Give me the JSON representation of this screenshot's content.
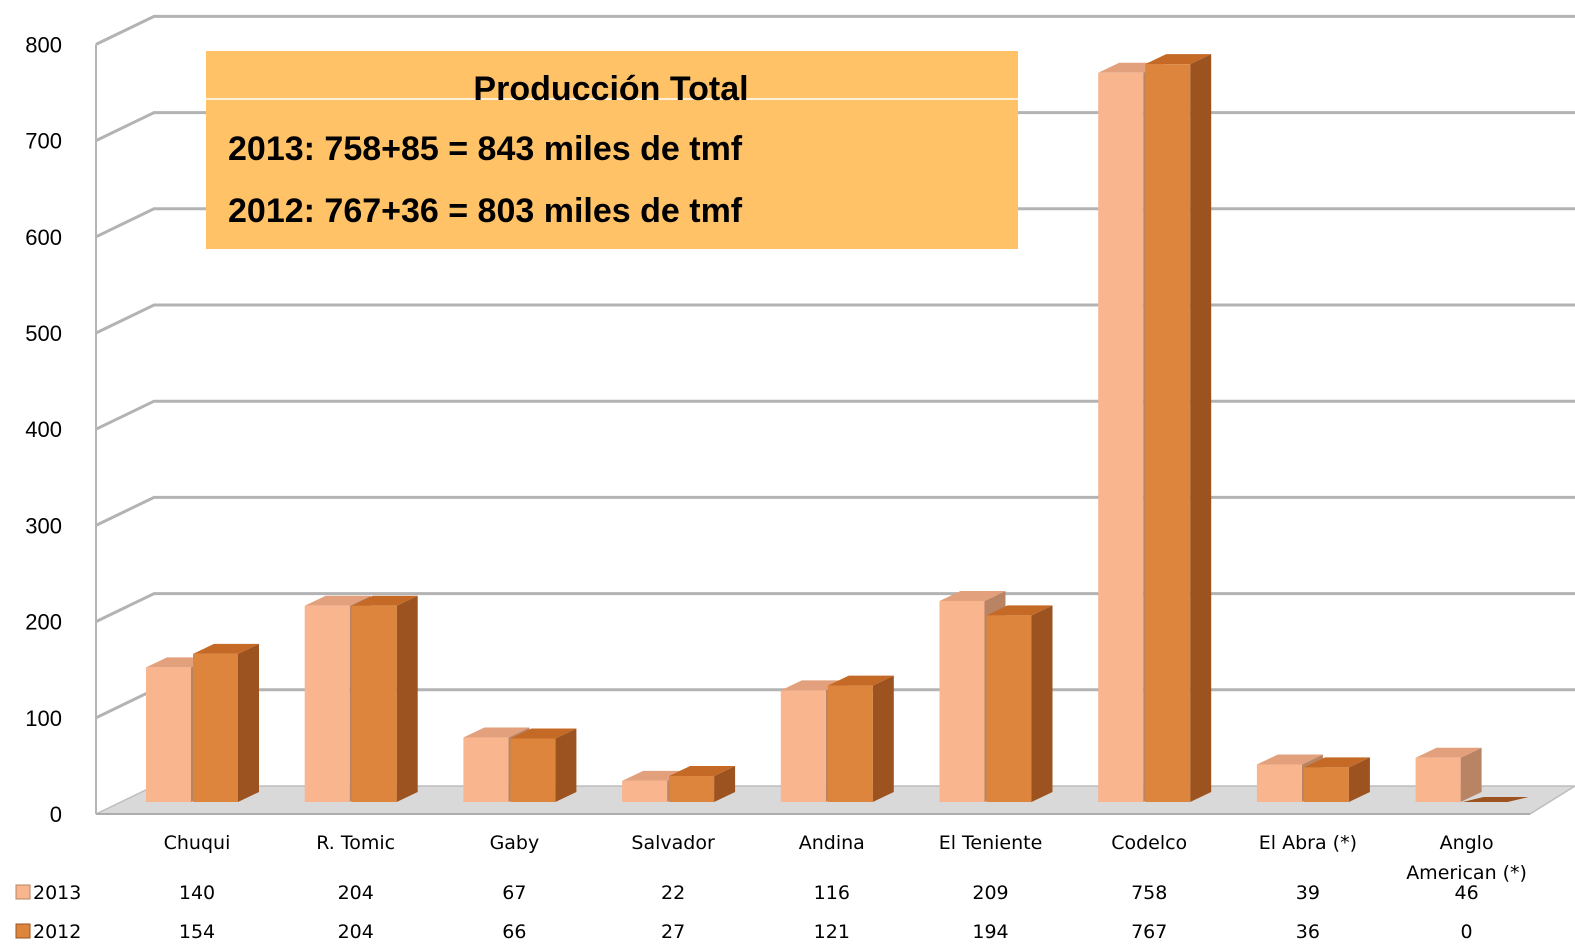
{
  "chart_data": {
    "type": "bar",
    "categories": [
      "Chuqui",
      "R. Tomic",
      "Gaby",
      "Salvador",
      "Andina",
      "El Teniente",
      "Codelco",
      "El Abra (*)",
      [
        "Anglo",
        "American (*)"
      ]
    ],
    "series": [
      {
        "name": "2013",
        "values": [
          140,
          204,
          67,
          22,
          116,
          209,
          758,
          39,
          46
        ]
      },
      {
        "name": "2012",
        "values": [
          154,
          204,
          66,
          27,
          121,
          194,
          767,
          36,
          0
        ]
      }
    ],
    "ylim": [
      0,
      800
    ],
    "yticks": [
      "0",
      "100",
      "200",
      "300",
      "400",
      "500",
      "600",
      "700",
      "800"
    ],
    "grid": true,
    "legend": "data-table-left",
    "annotation": {
      "title": "Producción Total",
      "lines": [
        "2013: 758+85 = 843 miles de tmf",
        "2012: 767+36 = 803 miles de tmf"
      ]
    },
    "colors": {
      "s2013_front": "#F9B58E",
      "s2013_top": "#E3A07C",
      "s2013_side": "#B98463",
      "s2012_front": "#DD843D",
      "s2012_top": "#C46A26",
      "s2012_side": "#9C5320"
    }
  }
}
